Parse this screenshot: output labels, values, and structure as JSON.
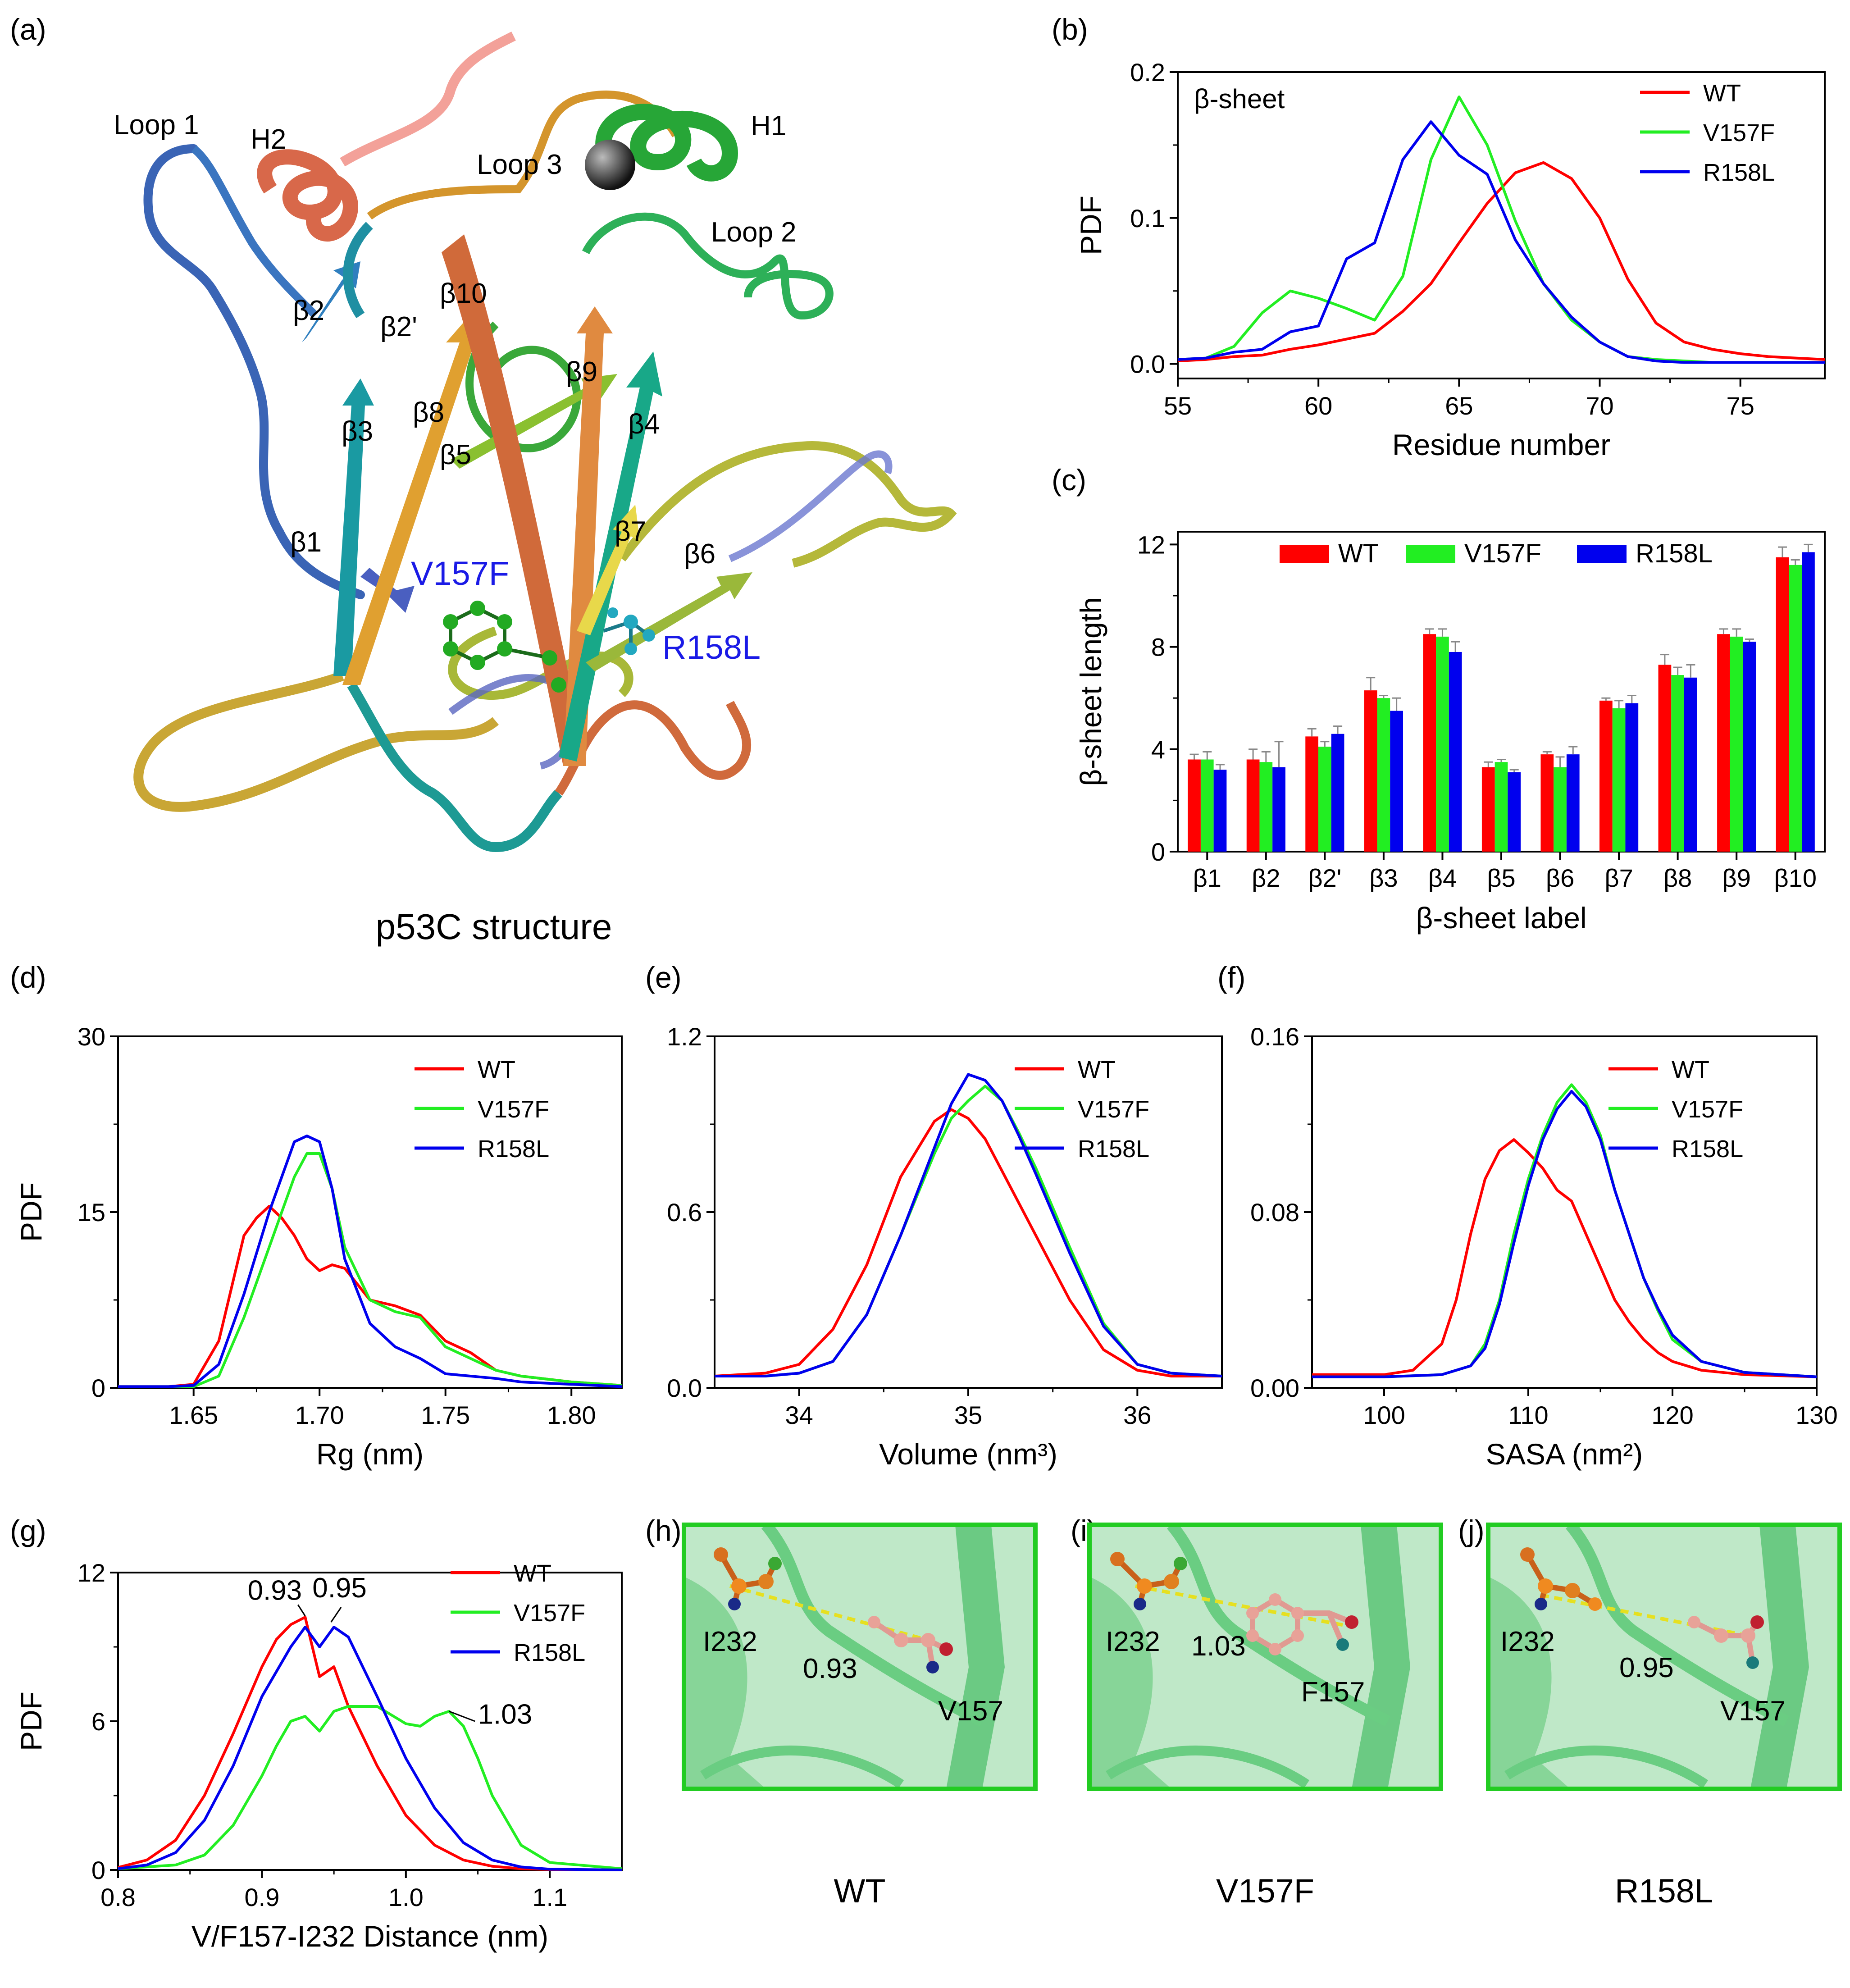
{
  "panel_a": {
    "label": "(a)",
    "caption": "p53C structure",
    "labels": [
      "Loop 1",
      "H2",
      "Loop 3",
      "H1",
      "Loop 2",
      "β2",
      "β2'",
      "β10",
      "β9",
      "β3",
      "β8",
      "β5",
      "β4",
      "β1",
      "β7",
      "β6"
    ],
    "mutations": [
      "V157F",
      "R158L"
    ]
  },
  "panels_hij": [
    {
      "label": "(h)",
      "caption": "WT",
      "atom_a": "I232",
      "atom_b": "V157",
      "distance": "0.93"
    },
    {
      "label": "(i)",
      "caption": "V157F",
      "atom_a": "I232",
      "atom_b": "F157",
      "distance": "1.03"
    },
    {
      "label": "(j)",
      "caption": "R158L",
      "atom_a": "I232",
      "atom_b": "V157",
      "distance": "0.95"
    }
  ],
  "colors": {
    "WT": "#ff0000",
    "V157F": "#22ee22",
    "R158L": "#0000ee",
    "frame_green": "#22cc22"
  },
  "chart_data": [
    {
      "id": "b",
      "label": "(b)",
      "type": "line",
      "annotation": "β-sheet",
      "xlabel": "Residue number",
      "ylabel": "PDF",
      "xlim": [
        55,
        78
      ],
      "ylim": [
        -0.01,
        0.2
      ],
      "xticks": [
        55,
        60,
        65,
        70,
        75
      ],
      "xtick_labels": [
        "55",
        "60",
        "65",
        "70",
        "75"
      ],
      "yticks": [
        0,
        0.1,
        0.2
      ],
      "ytick_labels": [
        "0.0",
        "0.1",
        "0.2"
      ],
      "legend": "top-right",
      "series": [
        {
          "name": "WT",
          "color": "#ff0000",
          "x": [
            55,
            56,
            57,
            58,
            59,
            60,
            61,
            62,
            63,
            64,
            65,
            66,
            67,
            68,
            69,
            70,
            71,
            72,
            73,
            74,
            75,
            76,
            77,
            78
          ],
          "y": [
            0.002,
            0.003,
            0.005,
            0.006,
            0.01,
            0.013,
            0.017,
            0.021,
            0.036,
            0.055,
            0.083,
            0.11,
            0.131,
            0.138,
            0.127,
            0.1,
            0.058,
            0.028,
            0.015,
            0.01,
            0.007,
            0.005,
            0.004,
            0.003
          ]
        },
        {
          "name": "V157F",
          "color": "#22ee22",
          "x": [
            55,
            56,
            57,
            58,
            59,
            60,
            61,
            62,
            63,
            64,
            65,
            66,
            67,
            68,
            69,
            70,
            71,
            72,
            73,
            74,
            75,
            76,
            77,
            78
          ],
          "y": [
            0.003,
            0.004,
            0.012,
            0.035,
            0.05,
            0.045,
            0.038,
            0.03,
            0.06,
            0.14,
            0.183,
            0.15,
            0.098,
            0.055,
            0.03,
            0.015,
            0.005,
            0.003,
            0.002,
            0.001,
            0.001,
            0.001,
            0.001,
            0.001
          ]
        },
        {
          "name": "R158L",
          "color": "#0000ee",
          "x": [
            55,
            56,
            57,
            58,
            59,
            60,
            61,
            62,
            63,
            64,
            65,
            66,
            67,
            68,
            69,
            70,
            71,
            72,
            73,
            74,
            75,
            76,
            77,
            78
          ],
          "y": [
            0.003,
            0.004,
            0.008,
            0.01,
            0.022,
            0.026,
            0.072,
            0.083,
            0.14,
            0.166,
            0.143,
            0.13,
            0.085,
            0.055,
            0.032,
            0.015,
            0.005,
            0.002,
            0.001,
            0.001,
            0.001,
            0.001,
            0.001,
            0.001
          ]
        }
      ]
    },
    {
      "id": "c",
      "label": "(c)",
      "type": "bar",
      "xlabel": "β-sheet label",
      "ylabel": "β-sheet length",
      "ylim": [
        0,
        12.5
      ],
      "yticks": [
        0,
        4,
        8,
        12
      ],
      "ytick_labels": [
        "0",
        "4",
        "8",
        "12"
      ],
      "legend": "top",
      "categories": [
        "β1",
        "β2",
        "β2'",
        "β3",
        "β4",
        "β5",
        "β6",
        "β7",
        "β8",
        "β9",
        "β10"
      ],
      "series": [
        {
          "name": "WT",
          "color": "#ff0000",
          "values": [
            3.6,
            3.6,
            4.5,
            6.3,
            8.5,
            3.3,
            3.8,
            5.9,
            7.3,
            8.5,
            11.5
          ],
          "errors": [
            0.2,
            0.4,
            0.3,
            0.5,
            0.2,
            0.2,
            0.1,
            0.1,
            0.4,
            0.2,
            0.4
          ]
        },
        {
          "name": "V157F",
          "color": "#22ee22",
          "values": [
            3.6,
            3.5,
            4.1,
            6.0,
            8.4,
            3.5,
            3.3,
            5.6,
            6.9,
            8.4,
            11.2
          ],
          "errors": [
            0.3,
            0.4,
            0.2,
            0.1,
            0.3,
            0.1,
            0.4,
            0.3,
            0.3,
            0.3,
            0.2
          ]
        },
        {
          "name": "R158L",
          "color": "#0000ee",
          "values": [
            3.2,
            3.3,
            4.6,
            5.5,
            7.8,
            3.1,
            3.8,
            5.8,
            6.8,
            8.2,
            11.7
          ],
          "errors": [
            0.2,
            1.0,
            0.3,
            0.5,
            0.4,
            0.1,
            0.3,
            0.3,
            0.5,
            0.1,
            0.3
          ]
        }
      ]
    },
    {
      "id": "d",
      "label": "(d)",
      "type": "line",
      "xlabel": "Rg (nm)",
      "ylabel": "PDF",
      "xlim": [
        1.62,
        1.82
      ],
      "ylim": [
        0,
        30
      ],
      "xticks": [
        1.65,
        1.7,
        1.75,
        1.8
      ],
      "xtick_labels": [
        "1.65",
        "1.70",
        "1.75",
        "1.80"
      ],
      "yticks": [
        0,
        15,
        30
      ],
      "ytick_labels": [
        "0",
        "15",
        "30"
      ],
      "legend": "top-right",
      "series": [
        {
          "name": "WT",
          "color": "#ff0000",
          "x": [
            1.62,
            1.64,
            1.65,
            1.66,
            1.67,
            1.675,
            1.68,
            1.685,
            1.69,
            1.695,
            1.7,
            1.705,
            1.71,
            1.72,
            1.73,
            1.74,
            1.75,
            1.76,
            1.77,
            1.78,
            1.8,
            1.82
          ],
          "y": [
            0.1,
            0.1,
            0.3,
            4,
            13,
            14.5,
            15.5,
            14.5,
            13,
            11,
            10,
            10.5,
            10.2,
            7.5,
            7,
            6.2,
            4,
            3,
            1.5,
            1.0,
            0.5,
            0.2
          ]
        },
        {
          "name": "V157F",
          "color": "#22ee22",
          "x": [
            1.62,
            1.64,
            1.65,
            1.66,
            1.67,
            1.68,
            1.685,
            1.69,
            1.695,
            1.7,
            1.705,
            1.71,
            1.72,
            1.73,
            1.74,
            1.75,
            1.76,
            1.77,
            1.78,
            1.8,
            1.82
          ],
          "y": [
            0.1,
            0.1,
            0.1,
            1,
            6,
            12,
            15,
            18,
            20,
            20,
            17,
            12,
            7.5,
            6.5,
            6,
            3.5,
            2.5,
            1.5,
            1.0,
            0.5,
            0.2
          ]
        },
        {
          "name": "R158L",
          "color": "#0000ee",
          "x": [
            1.62,
            1.64,
            1.65,
            1.66,
            1.67,
            1.68,
            1.685,
            1.69,
            1.695,
            1.7,
            1.705,
            1.71,
            1.72,
            1.73,
            1.74,
            1.75,
            1.76,
            1.77,
            1.78,
            1.8,
            1.82
          ],
          "y": [
            0.1,
            0.1,
            0.2,
            2,
            8,
            15,
            18,
            21,
            21.5,
            21,
            17,
            11,
            5.5,
            3.5,
            2.5,
            1.2,
            1.0,
            0.8,
            0.5,
            0.3,
            0.1
          ]
        }
      ]
    },
    {
      "id": "e",
      "label": "(e)",
      "type": "line",
      "xlabel": "Volume (nm³)",
      "ylabel": "",
      "xlim": [
        33.5,
        36.5
      ],
      "ylim": [
        0,
        1.2
      ],
      "xticks": [
        34,
        35,
        36
      ],
      "xtick_labels": [
        "34",
        "35",
        "36"
      ],
      "yticks": [
        0,
        0.6,
        1.2
      ],
      "ytick_labels": [
        "0.0",
        "0.6",
        "1.2"
      ],
      "legend": "top-right",
      "series": [
        {
          "name": "WT",
          "color": "#ff0000",
          "x": [
            33.5,
            33.8,
            34.0,
            34.2,
            34.4,
            34.6,
            34.8,
            34.9,
            35.0,
            35.1,
            35.2,
            35.4,
            35.6,
            35.8,
            36.0,
            36.2,
            36.5
          ],
          "y": [
            0.04,
            0.05,
            0.08,
            0.2,
            0.42,
            0.72,
            0.91,
            0.95,
            0.92,
            0.85,
            0.74,
            0.52,
            0.3,
            0.13,
            0.06,
            0.04,
            0.04
          ]
        },
        {
          "name": "V157F",
          "color": "#22ee22",
          "x": [
            33.5,
            33.8,
            34.0,
            34.2,
            34.4,
            34.6,
            34.8,
            34.9,
            35.0,
            35.1,
            35.2,
            35.3,
            35.4,
            35.6,
            35.8,
            36.0,
            36.2,
            36.5
          ],
          "y": [
            0.04,
            0.04,
            0.05,
            0.09,
            0.25,
            0.52,
            0.8,
            0.92,
            0.98,
            1.03,
            0.98,
            0.87,
            0.75,
            0.48,
            0.22,
            0.08,
            0.05,
            0.04
          ]
        },
        {
          "name": "R158L",
          "color": "#0000ee",
          "x": [
            33.5,
            33.8,
            34.0,
            34.2,
            34.4,
            34.6,
            34.8,
            34.9,
            35.0,
            35.1,
            35.2,
            35.3,
            35.4,
            35.6,
            35.8,
            36.0,
            36.2,
            36.5
          ],
          "y": [
            0.04,
            0.04,
            0.05,
            0.09,
            0.25,
            0.52,
            0.82,
            0.97,
            1.07,
            1.05,
            0.98,
            0.86,
            0.73,
            0.46,
            0.21,
            0.08,
            0.05,
            0.04
          ]
        }
      ]
    },
    {
      "id": "f",
      "label": "(f)",
      "type": "line",
      "xlabel": "SASA (nm²)",
      "ylabel": "",
      "xlim": [
        95,
        130
      ],
      "ylim": [
        0,
        0.16
      ],
      "xticks": [
        100,
        110,
        120,
        130
      ],
      "xtick_labels": [
        "100",
        "110",
        "120",
        "130"
      ],
      "yticks": [
        0,
        0.08,
        0.16
      ],
      "ytick_labels": [
        "0.00",
        "0.08",
        "0.16"
      ],
      "legend": "top-right",
      "series": [
        {
          "name": "WT",
          "color": "#ff0000",
          "x": [
            95,
            100,
            102,
            104,
            105,
            106,
            107,
            108,
            109,
            110,
            111,
            112,
            113,
            114,
            115,
            116,
            117,
            118,
            119,
            120,
            122,
            125,
            130
          ],
          "y": [
            0.006,
            0.006,
            0.008,
            0.02,
            0.04,
            0.07,
            0.095,
            0.108,
            0.113,
            0.107,
            0.1,
            0.09,
            0.085,
            0.07,
            0.055,
            0.04,
            0.03,
            0.022,
            0.016,
            0.012,
            0.008,
            0.006,
            0.005
          ]
        },
        {
          "name": "V157F",
          "color": "#22ee22",
          "x": [
            95,
            100,
            104,
            106,
            107,
            108,
            109,
            110,
            111,
            112,
            113,
            114,
            115,
            116,
            117,
            118,
            119,
            120,
            122,
            125,
            130
          ],
          "y": [
            0.005,
            0.005,
            0.006,
            0.01,
            0.02,
            0.04,
            0.07,
            0.095,
            0.115,
            0.13,
            0.138,
            0.13,
            0.115,
            0.09,
            0.07,
            0.05,
            0.035,
            0.022,
            0.012,
            0.007,
            0.005
          ]
        },
        {
          "name": "R158L",
          "color": "#0000ee",
          "x": [
            95,
            100,
            104,
            106,
            107,
            108,
            109,
            110,
            111,
            112,
            113,
            114,
            115,
            116,
            117,
            118,
            119,
            120,
            122,
            125,
            130
          ],
          "y": [
            0.005,
            0.005,
            0.006,
            0.01,
            0.018,
            0.038,
            0.066,
            0.092,
            0.113,
            0.127,
            0.135,
            0.128,
            0.113,
            0.09,
            0.07,
            0.05,
            0.036,
            0.024,
            0.012,
            0.007,
            0.005
          ]
        }
      ]
    },
    {
      "id": "g",
      "label": "(g)",
      "type": "line",
      "xlabel": "V/F157-I232 Distance (nm)",
      "ylabel": "PDF",
      "xlim": [
        0.8,
        1.15
      ],
      "ylim": [
        0,
        12
      ],
      "xticks": [
        0.8,
        0.9,
        1.0,
        1.1
      ],
      "xtick_labels": [
        "0.8",
        "0.9",
        "1.0",
        "1.1"
      ],
      "yticks": [
        0,
        6,
        12
      ],
      "ytick_labels": [
        "0",
        "6",
        "12"
      ],
      "legend": "top-right",
      "annotations": [
        "0.93",
        "0.95",
        "1.03"
      ],
      "series": [
        {
          "name": "WT",
          "color": "#ff0000",
          "x": [
            0.8,
            0.82,
            0.84,
            0.86,
            0.88,
            0.9,
            0.91,
            0.92,
            0.93,
            0.94,
            0.95,
            0.96,
            0.98,
            1.0,
            1.02,
            1.04,
            1.06,
            1.08,
            1.1,
            1.15
          ],
          "y": [
            0.1,
            0.4,
            1.2,
            3.0,
            5.5,
            8.2,
            9.3,
            9.9,
            10.2,
            7.8,
            8.2,
            6.6,
            4.2,
            2.2,
            1.0,
            0.4,
            0.15,
            0.05,
            0.02,
            0.0
          ]
        },
        {
          "name": "V157F",
          "color": "#22ee22",
          "x": [
            0.8,
            0.84,
            0.86,
            0.88,
            0.9,
            0.91,
            0.92,
            0.93,
            0.94,
            0.95,
            0.96,
            0.98,
            1.0,
            1.01,
            1.02,
            1.03,
            1.04,
            1.05,
            1.06,
            1.08,
            1.1,
            1.15
          ],
          "y": [
            0.05,
            0.2,
            0.6,
            1.8,
            3.8,
            5.0,
            6.0,
            6.2,
            5.6,
            6.4,
            6.6,
            6.6,
            5.9,
            5.8,
            6.2,
            6.4,
            5.8,
            4.5,
            3.0,
            1.0,
            0.3,
            0.05
          ]
        },
        {
          "name": "R158L",
          "color": "#0000ee",
          "x": [
            0.8,
            0.82,
            0.84,
            0.86,
            0.88,
            0.9,
            0.92,
            0.93,
            0.94,
            0.95,
            0.96,
            0.97,
            0.98,
            1.0,
            1.02,
            1.04,
            1.06,
            1.08,
            1.1,
            1.15
          ],
          "y": [
            0.05,
            0.2,
            0.7,
            2.0,
            4.2,
            7.0,
            9.0,
            9.8,
            9.0,
            9.8,
            9.4,
            8.2,
            7.0,
            4.5,
            2.5,
            1.1,
            0.4,
            0.12,
            0.03,
            0.0
          ]
        }
      ]
    }
  ]
}
